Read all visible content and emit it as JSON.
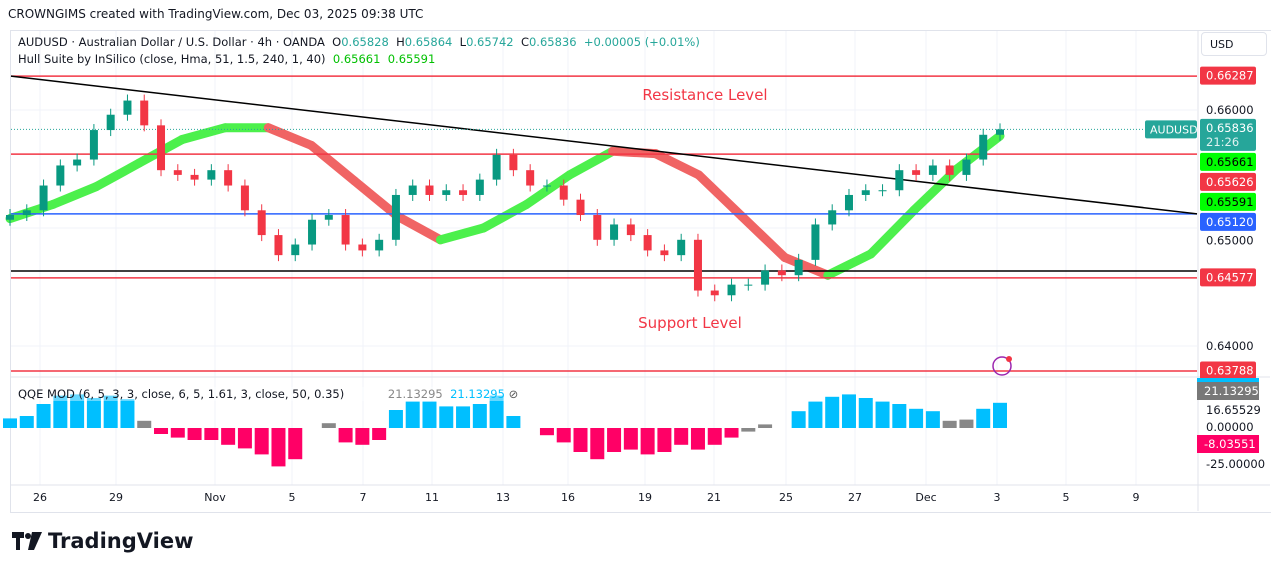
{
  "credit": "CROWNGIMS created with TradingView.com, Dec 03, 2025 09:38 UTC",
  "symbol_line": {
    "name": "AUDUSD · Australian Dollar / U.S. Dollar · 4h · OANDA",
    "o_label": "O",
    "o": "0.65828",
    "h_label": "H",
    "h": "0.65864",
    "l_label": "L",
    "l": "0.65742",
    "c_label": "C",
    "c": "0.65836",
    "change": "+0.00005 (+0.01%)"
  },
  "hull_line": {
    "name": "Hull Suite by InSilico (close, Hma, 51, 1.5, 240, 1, 40)",
    "v1": "0.65661",
    "v2": "0.65591"
  },
  "qqe_line": {
    "name": "QQE MOD (6, 5, 3, 3, close, 6, 5, 1.61, 3, close, 50, 0.35)",
    "v1": "21.13295",
    "v2": "21.13295"
  },
  "currency": "USD",
  "brand": "TradingView",
  "colors": {
    "up": "#089981",
    "down": "#f23645",
    "hull_up": "#4cf04c",
    "hull_down": "#f06464",
    "qqe_up": "#00bfff",
    "qqe_down": "#ff0066",
    "qqe_neutral": "#888888",
    "blue_level": "#2962ff"
  },
  "chart_data": {
    "type": "candlestick",
    "price_axis": {
      "ticks": [
        "0.66000",
        "0.65000",
        "0.64000"
      ],
      "ylim": [
        0.6365,
        0.6655
      ]
    },
    "x_ticks": [
      "26",
      "29",
      "Nov",
      "5",
      "7",
      "11",
      "13",
      "16",
      "19",
      "21",
      "25",
      "27",
      "Dec",
      "3",
      "5",
      "9"
    ],
    "closes": [
      0.6511,
      0.6515,
      0.6536,
      0.6553,
      0.6558,
      0.6583,
      0.6596,
      0.6608,
      0.6587,
      0.6549,
      0.6545,
      0.6541,
      0.6549,
      0.6536,
      0.6515,
      0.6494,
      0.6477,
      0.6486,
      0.6507,
      0.6511,
      0.6486,
      0.6481,
      0.649,
      0.6528,
      0.6536,
      0.6528,
      0.6532,
      0.6528,
      0.6541,
      0.6562,
      0.6549,
      0.6536,
      0.6536,
      0.6524,
      0.6511,
      0.649,
      0.6503,
      0.6494,
      0.6481,
      0.6477,
      0.649,
      0.6447,
      0.6443,
      0.6452,
      0.6452,
      0.6464,
      0.646,
      0.6473,
      0.6503,
      0.6515,
      0.6528,
      0.6532,
      0.6532,
      0.6549,
      0.6545,
      0.6553,
      0.6545,
      0.6558,
      0.6579,
      0.65836
    ],
    "hull": [
      0.6508,
      0.652,
      0.6535,
      0.6555,
      0.6575,
      0.6585,
      0.6585,
      0.657,
      0.654,
      0.651,
      0.649,
      0.65,
      0.652,
      0.6545,
      0.6565,
      0.6563,
      0.6545,
      0.651,
      0.6475,
      0.646,
      0.6478,
      0.6515,
      0.655,
      0.6578
    ],
    "levels": [
      {
        "value": "0.66287",
        "color": "#f23645",
        "text_color": "#fff"
      },
      {
        "value": "0.65626",
        "color": "#f23645",
        "text_color": "#fff"
      },
      {
        "value": "0.65120",
        "color": "#2962ff",
        "text_color": "#fff"
      },
      {
        "value": "0.64577",
        "color": "#f23645",
        "text_color": "#fff"
      },
      {
        "value": "0.63788",
        "color": "#f23645",
        "text_color": "#fff"
      }
    ],
    "black_level": 0.64636,
    "trendline": [
      0.66287,
      0.6512
    ],
    "hull_labels": [
      "0.65661",
      "0.65591"
    ],
    "last_price": {
      "label": "AUDUSD",
      "value": "0.65836",
      "countdown": "21:26"
    },
    "annotations": [
      "Resistance Level",
      "Support Level"
    ],
    "qqe": {
      "ticks": [
        "16.65529",
        "0.00000",
        "-25.00000"
      ],
      "labels": [
        "21.13295",
        "-8.03551"
      ],
      "values": [
        8,
        10,
        20,
        27,
        28,
        25,
        27,
        24,
        6,
        -5,
        -8,
        -10,
        -10,
        -14,
        -17,
        -22,
        -32,
        -26,
        null,
        4,
        -12,
        -14,
        -10,
        15,
        22,
        22,
        18,
        18,
        20,
        27,
        10,
        null,
        -6,
        -12,
        -20,
        -26,
        -20,
        -18,
        -22,
        -20,
        -14,
        -18,
        -14,
        -8,
        -3,
        3,
        null,
        14,
        22,
        26,
        28,
        25,
        22,
        20,
        16,
        14,
        6,
        7,
        16,
        21
      ]
    }
  }
}
